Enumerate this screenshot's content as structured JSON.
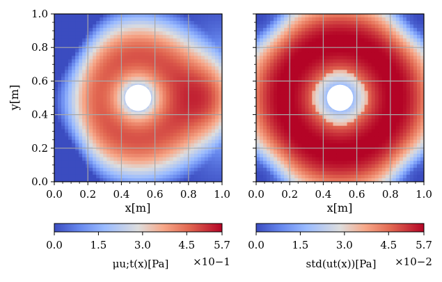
{
  "chart_data": [
    {
      "type": "heatmap",
      "panel": "left",
      "description_field": "mean",
      "xlabel": "x[m]",
      "ylabel": "y[m]",
      "xlim": [
        0.0,
        1.0
      ],
      "ylim": [
        0.0,
        1.0
      ],
      "xticks": [
        "0.0",
        "0.2",
        "0.4",
        "0.6",
        "0.8",
        "1.0"
      ],
      "yticks": [
        "0.0",
        "0.2",
        "0.4",
        "0.6",
        "0.8",
        "1.0"
      ],
      "grid": true,
      "hole": {
        "center": [
          0.5,
          0.5
        ],
        "radius": 0.07
      },
      "colormap": "coolwarm",
      "colorbar": {
        "label": "μu;t(x)[Pa]",
        "multiplier": "×10−1",
        "ticks": [
          "0.0",
          "1.5",
          "3.0",
          "4.5",
          "5.7"
        ],
        "range": [
          0.0,
          5.7
        ]
      }
    },
    {
      "type": "heatmap",
      "panel": "right",
      "description_field": "std",
      "xlabel": "x[m]",
      "ylabel": "",
      "xlim": [
        0.0,
        1.0
      ],
      "ylim": [
        0.0,
        1.0
      ],
      "xticks": [
        "0.0",
        "0.2",
        "0.4",
        "0.6",
        "0.8",
        "1.0"
      ],
      "grid": true,
      "hole": {
        "center": [
          0.5,
          0.5
        ],
        "radius": 0.07
      },
      "colormap": "coolwarm",
      "colorbar": {
        "label": "std(ut(x))[Pa]",
        "multiplier": "×10−2",
        "ticks": [
          "0.0",
          "1.5",
          "3.0",
          "4.5",
          "5.7"
        ],
        "range": [
          0.0,
          5.7
        ]
      }
    }
  ]
}
